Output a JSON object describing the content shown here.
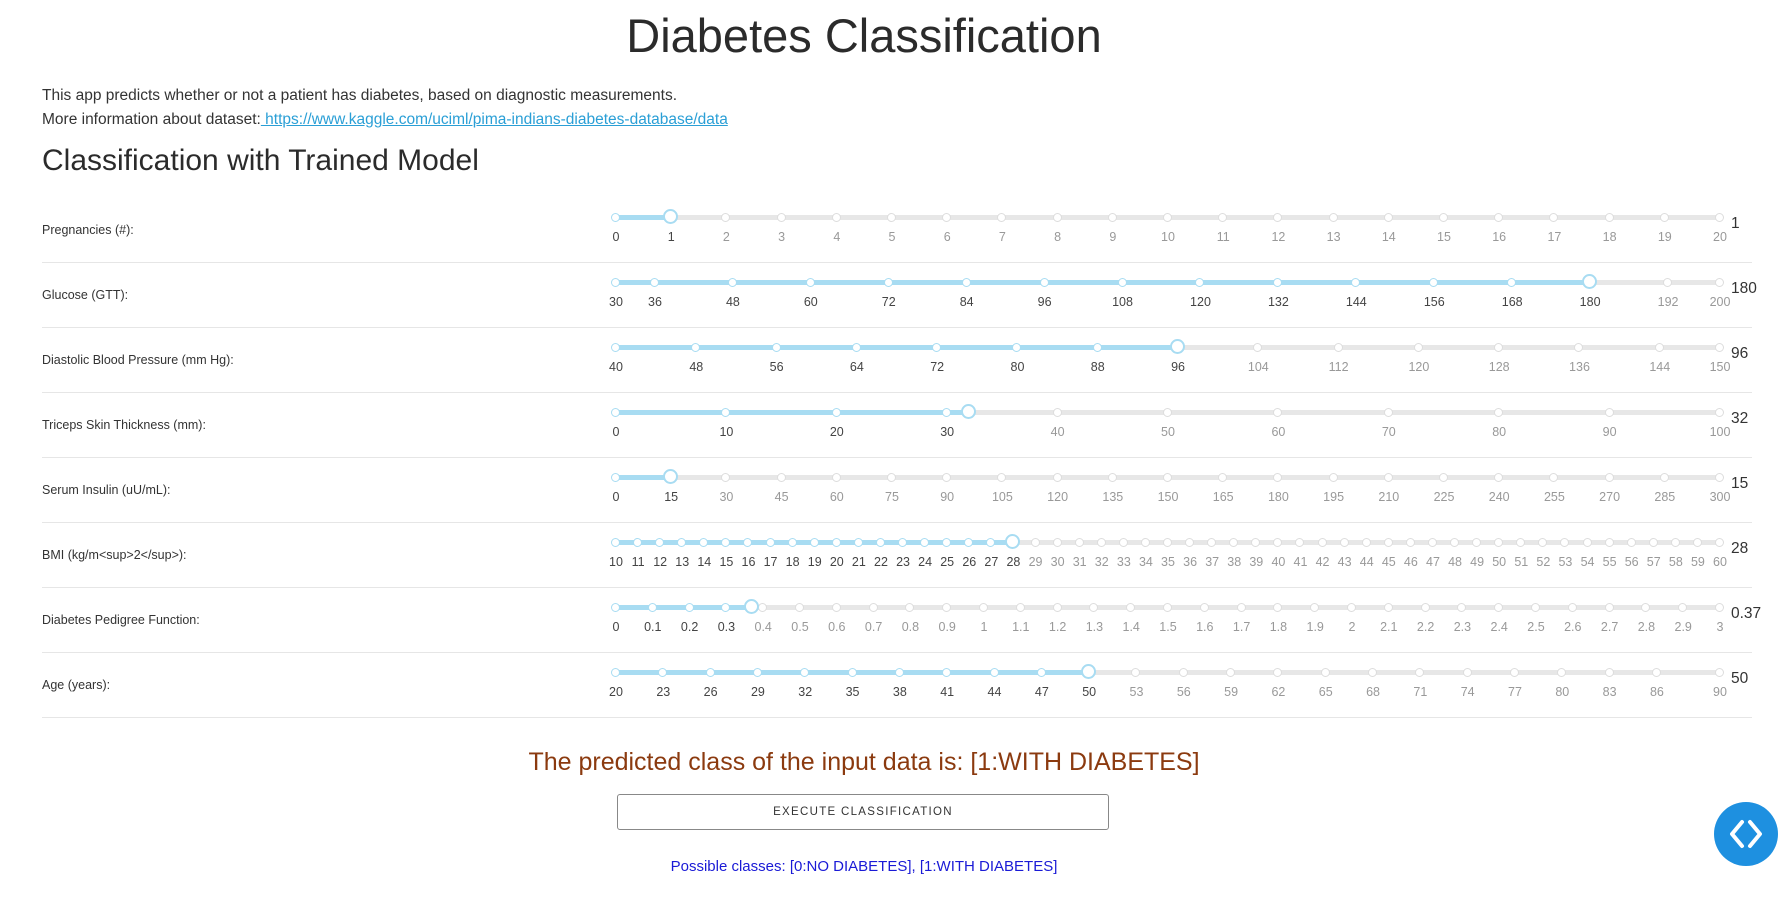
{
  "header": {
    "title": "Diabetes Classification"
  },
  "intro": {
    "line1": "This app predicts whether or not a patient has diabetes, based on diagnostic measurements.",
    "line2_prefix": "More information about dataset:",
    "link_text": " https://www.kaggle.com/uciml/pima-indians-diabetes-database/data"
  },
  "section": {
    "title": "Classification with Trained Model"
  },
  "sliders": [
    {
      "label": "Pregnancies (#):",
      "value": 1,
      "display": "1",
      "ticks": [
        "0",
        "1",
        "2",
        "3",
        "4",
        "5",
        "6",
        "7",
        "8",
        "9",
        "10",
        "11",
        "12",
        "13",
        "14",
        "15",
        "16",
        "17",
        "18",
        "19",
        "20"
      ]
    },
    {
      "label": "Glucose (GTT):",
      "value": 180,
      "display": "180",
      "ticks": [
        "30",
        "36",
        "48",
        "60",
        "72",
        "84",
        "96",
        "108",
        "120",
        "132",
        "144",
        "156",
        "168",
        "180",
        "192",
        "200"
      ]
    },
    {
      "label": "Diastolic Blood Pressure (mm Hg):",
      "value": 96,
      "display": "96",
      "ticks": [
        "40",
        "48",
        "56",
        "64",
        "72",
        "80",
        "88",
        "96",
        "104",
        "112",
        "120",
        "128",
        "136",
        "144",
        "150"
      ]
    },
    {
      "label": "Triceps Skin Thickness (mm):",
      "value": 32,
      "display": "32",
      "ticks": [
        "0",
        "10",
        "20",
        "30",
        "40",
        "50",
        "60",
        "70",
        "80",
        "90",
        "100"
      ]
    },
    {
      "label": "Serum Insulin (uU/mL):",
      "value": 15,
      "display": "15",
      "ticks": [
        "0",
        "15",
        "30",
        "45",
        "60",
        "75",
        "90",
        "105",
        "120",
        "135",
        "150",
        "165",
        "180",
        "195",
        "210",
        "225",
        "240",
        "255",
        "270",
        "285",
        "300"
      ]
    },
    {
      "label": "BMI (kg/m<sup>2</sup>):",
      "value": 28,
      "display": "28",
      "ticks": [
        "10",
        "11",
        "12",
        "13",
        "14",
        "15",
        "16",
        "17",
        "18",
        "19",
        "20",
        "21",
        "22",
        "23",
        "24",
        "25",
        "26",
        "27",
        "28",
        "29",
        "30",
        "31",
        "32",
        "33",
        "34",
        "35",
        "36",
        "37",
        "38",
        "39",
        "40",
        "41",
        "42",
        "43",
        "44",
        "45",
        "46",
        "47",
        "48",
        "49",
        "50",
        "51",
        "52",
        "53",
        "54",
        "55",
        "56",
        "57",
        "58",
        "59",
        "60"
      ]
    },
    {
      "label": "Diabetes Pedigree Function:",
      "value": 0.37,
      "display": "0.37",
      "ticks": [
        "0",
        "0.1",
        "0.2",
        "0.3",
        "0.4",
        "0.5",
        "0.6",
        "0.7",
        "0.8",
        "0.9",
        "1",
        "1.1",
        "1.2",
        "1.3",
        "1.4",
        "1.5",
        "1.6",
        "1.7",
        "1.8",
        "1.9",
        "2",
        "2.1",
        "2.2",
        "2.3",
        "2.4",
        "2.5",
        "2.6",
        "2.7",
        "2.8",
        "2.9",
        "3"
      ]
    },
    {
      "label": "Age (years):",
      "value": 50,
      "display": "50",
      "ticks": [
        "20",
        "23",
        "26",
        "29",
        "32",
        "35",
        "38",
        "41",
        "44",
        "47",
        "50",
        "53",
        "56",
        "59",
        "62",
        "65",
        "68",
        "71",
        "74",
        "77",
        "80",
        "83",
        "86",
        "90"
      ]
    }
  ],
  "result": {
    "predicted": "The predicted class of the input data is: [1:WITH DIABETES]"
  },
  "actions": {
    "execute_label": "EXECUTE CLASSIFICATION"
  },
  "footer": {
    "possible_classes": "Possible classes: [0:NO DIABETES], [1:WITH DIABETES]"
  },
  "icons": {
    "fab": "code-brackets-icon"
  },
  "colors": {
    "accent": "#a8dcf2",
    "result": "#8b3a0f",
    "possible": "#1a1ad6",
    "fab": "#1e90e0",
    "link": "#2a9fd6"
  }
}
